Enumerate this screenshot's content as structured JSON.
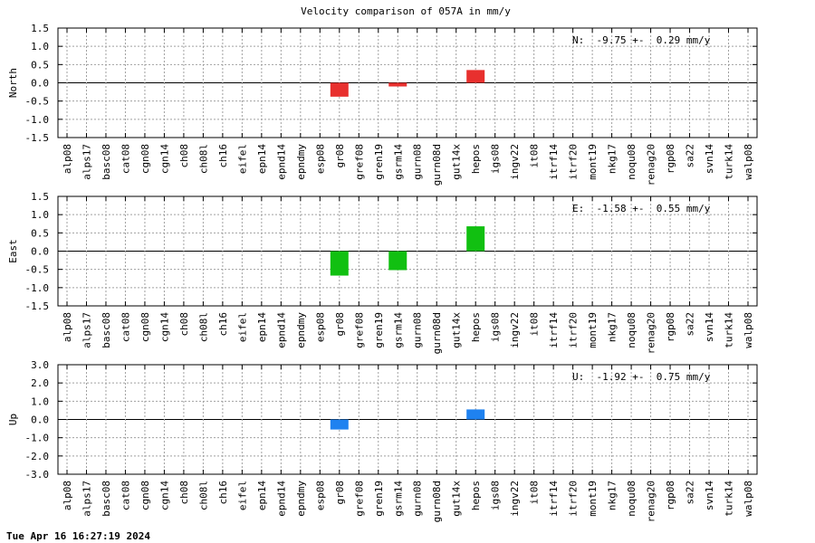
{
  "chart_data": {
    "title": "Velocity comparison of 057A in mm/y",
    "categories": [
      "alp08",
      "alps17",
      "basc08",
      "cat08",
      "cgn08",
      "cgn14",
      "ch08",
      "ch08l",
      "ch16",
      "eifel",
      "epn14",
      "epnd14",
      "epndmy",
      "esp08",
      "gr08",
      "gref08",
      "gren19",
      "gsrm14",
      "gurn08",
      "gurn08d",
      "gut14x",
      "hepos",
      "igs08",
      "ingv22",
      "it08",
      "itrf14",
      "itrf20",
      "mont19",
      "nkg17",
      "noqu08",
      "renag20",
      "rgp08",
      "sa22",
      "svn14",
      "turk14",
      "walp08"
    ],
    "panels": [
      {
        "type": "bar",
        "ylabel": "North",
        "ylim": [
          -1.5,
          1.5
        ],
        "yticks": [
          "1.5",
          "1.0",
          "0.5",
          "0.0",
          "-0.5",
          "-1.0",
          "-1.5"
        ],
        "color": "#e8302e",
        "annotation": "N:  -9.75 +-  0.29 mm/y",
        "values": [
          null,
          null,
          null,
          null,
          null,
          null,
          null,
          null,
          null,
          null,
          null,
          null,
          null,
          null,
          -0.38,
          null,
          null,
          -0.1,
          null,
          null,
          null,
          0.35,
          null,
          null,
          null,
          null,
          null,
          null,
          null,
          null,
          null,
          null,
          null,
          null,
          null,
          null
        ]
      },
      {
        "type": "bar",
        "ylabel": "East",
        "ylim": [
          -1.5,
          1.5
        ],
        "yticks": [
          "1.5",
          "1.0",
          "0.5",
          "0.0",
          "-0.5",
          "-1.0",
          "-1.5"
        ],
        "color": "#11c011",
        "annotation": "E:  -1.58 +-  0.55 mm/y",
        "values": [
          null,
          null,
          null,
          null,
          null,
          null,
          null,
          null,
          null,
          null,
          null,
          null,
          null,
          null,
          -0.67,
          null,
          null,
          -0.52,
          null,
          null,
          null,
          0.68,
          null,
          null,
          null,
          null,
          null,
          null,
          null,
          null,
          null,
          null,
          null,
          null,
          null,
          null
        ]
      },
      {
        "type": "bar",
        "ylabel": "Up",
        "ylim": [
          -3.0,
          3.0
        ],
        "yticks": [
          "3.0",
          "2.0",
          "1.0",
          "0.0",
          "-1.0",
          "-2.0",
          "-3.0"
        ],
        "color": "#1f82f0",
        "annotation": "U:  -1.92 +-  0.75 mm/y",
        "values": [
          null,
          null,
          null,
          null,
          null,
          null,
          null,
          null,
          null,
          null,
          null,
          null,
          null,
          null,
          -0.55,
          null,
          null,
          null,
          null,
          null,
          null,
          0.55,
          null,
          null,
          null,
          null,
          null,
          null,
          null,
          null,
          null,
          null,
          null,
          null,
          null,
          null
        ]
      }
    ],
    "grid": true
  },
  "footer": {
    "timestamp": "Tue Apr 16 16:27:19 2024"
  }
}
